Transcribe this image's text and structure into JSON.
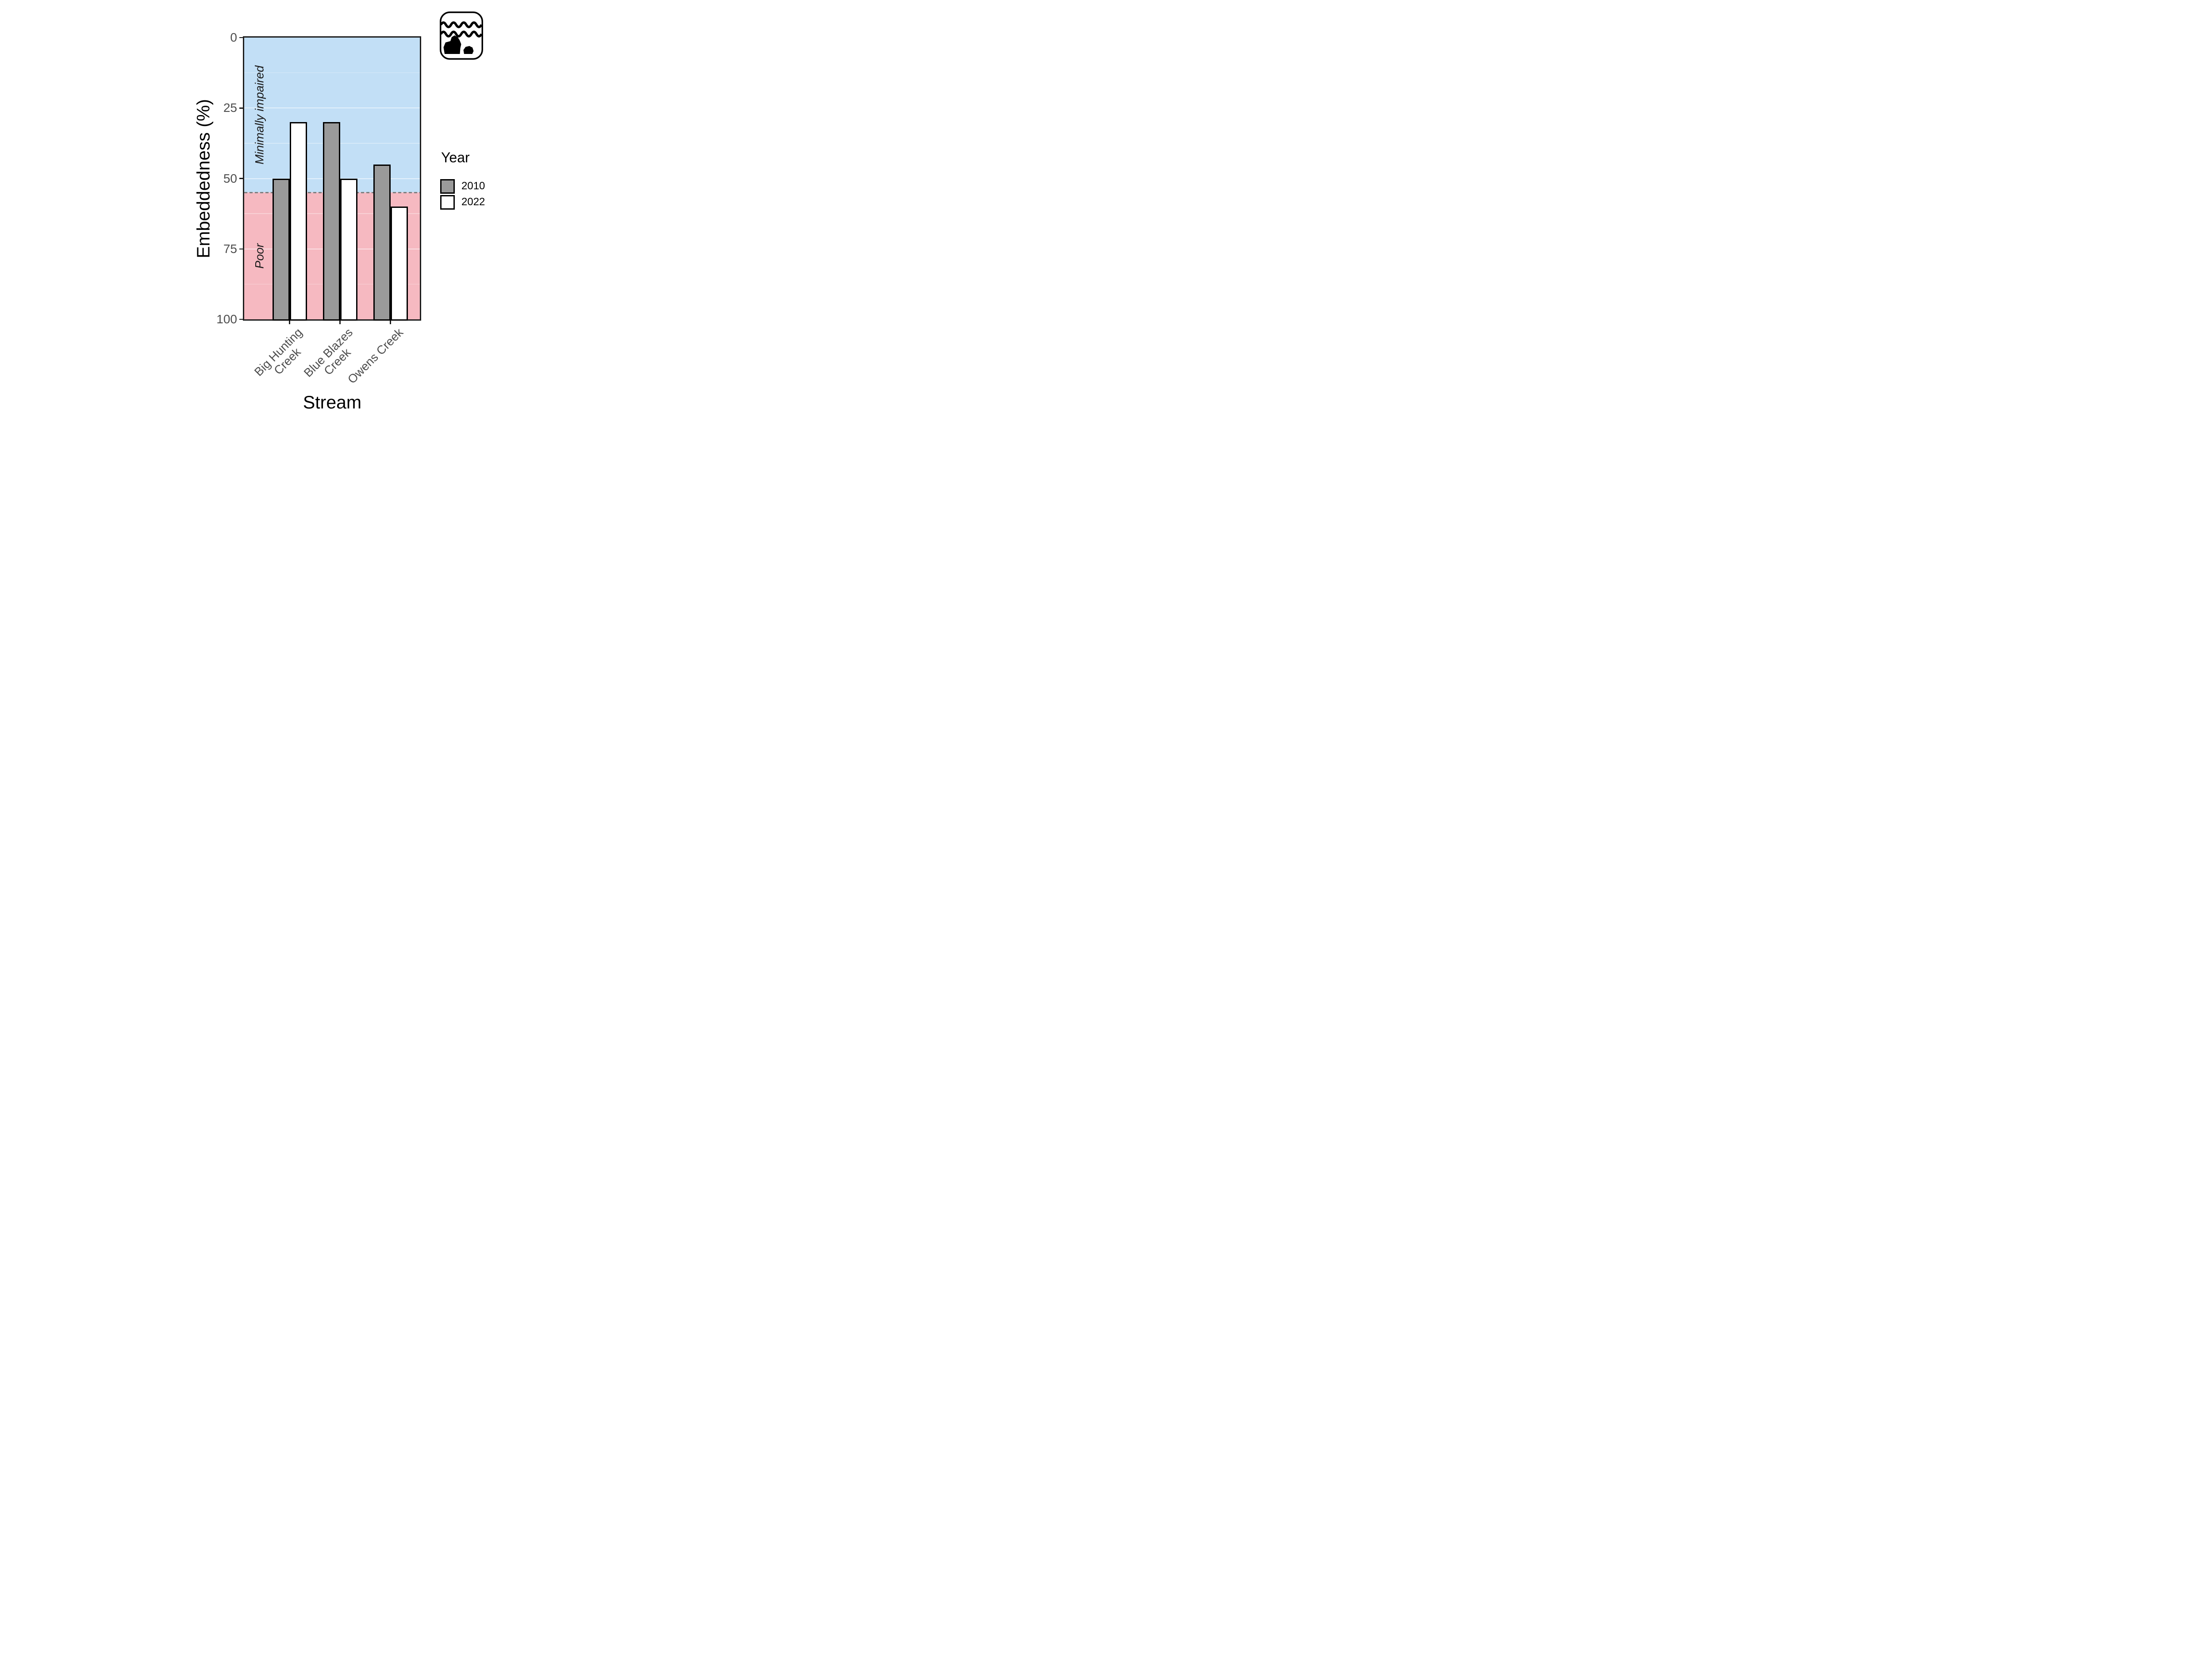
{
  "chart_data": {
    "type": "bar",
    "title": "",
    "categories": [
      "Big Hunting\nCreek",
      "Blue Blazes\nCreek",
      "Owens Creek"
    ],
    "series": [
      {
        "name": "2010",
        "values": [
          50,
          30,
          45
        ],
        "fill": "#9A9A9A"
      },
      {
        "name": "2022",
        "values": [
          30,
          50,
          60
        ],
        "fill": "#FFFFFF"
      }
    ],
    "xlabel": "Stream",
    "ylabel": "Embeddedness (%)",
    "y_axis_reversed": true,
    "ylim": [
      0,
      100
    ],
    "yticks": [
      0,
      25,
      50,
      75,
      100
    ],
    "major_gridlines": [
      25,
      50,
      75
    ],
    "minor_gridlines": [
      12.5,
      37.5,
      62.5,
      87.5
    ],
    "threshold": {
      "value": 55,
      "style": "dashed",
      "color": "#7F7F7F"
    },
    "regions": [
      {
        "label": "Minimally impaired",
        "from": 0,
        "to": 55,
        "color": "#C2DFF6"
      },
      {
        "label": "Poor",
        "from": 55,
        "to": 100,
        "color": "#F6B9C1"
      }
    ],
    "bar_border_color": "#000000",
    "legend_position": "right",
    "grid": "subtle-white-on-shaded-regions"
  },
  "legend": {
    "title": "Year",
    "items": [
      {
        "label": "2010",
        "fill": "#9A9A9A"
      },
      {
        "label": "2022",
        "fill": "#FFFFFF"
      }
    ]
  },
  "icon": {
    "name": "stream-water-and-rocks-icon"
  }
}
